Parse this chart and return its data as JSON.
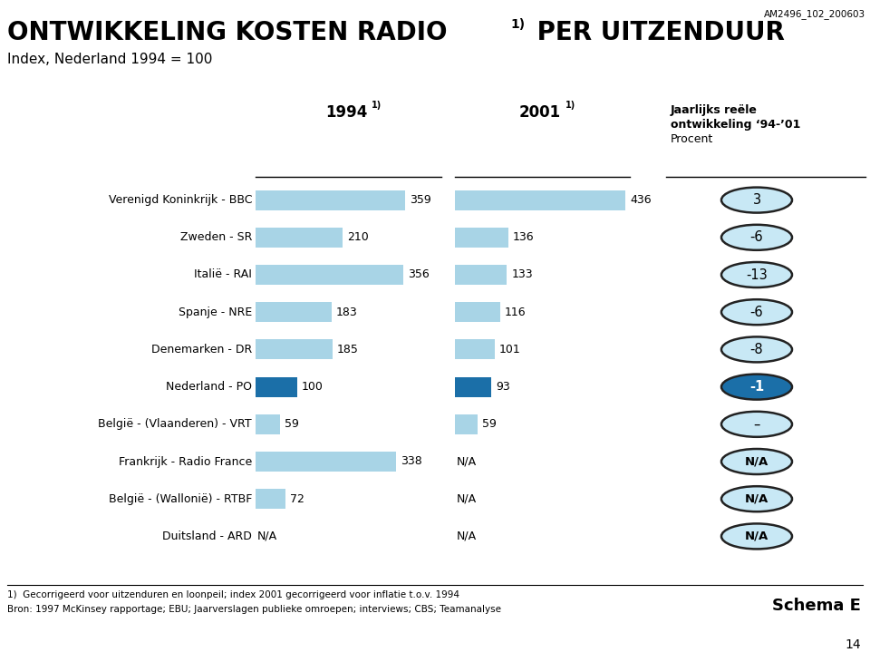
{
  "title_main": "ONTWIKKELING KOSTEN RADIO",
  "title_super": "1)",
  "title_main2": " PER UITZENDUUR",
  "subtitle": "Index, Nederland 1994 = 100",
  "col1_header": "1994",
  "col1_super": "1)",
  "col2_header": "2001",
  "col2_super": "1)",
  "col3_line1": "Jaarlijks reële",
  "col3_line2": "ontwikkeling ‘94-’01",
  "col3_line3": "Procent",
  "rows": [
    {
      "label": "Verenigd Koninkrijk - BBC",
      "val1994": 359,
      "val2001": 436,
      "pct": "3",
      "dark": false,
      "na1994": false,
      "na2001": false,
      "na_pct": false
    },
    {
      "label": "Zweden - SR",
      "val1994": 210,
      "val2001": 136,
      "pct": "-6",
      "dark": false,
      "na1994": false,
      "na2001": false,
      "na_pct": false
    },
    {
      "label": "Italië - RAI",
      "val1994": 356,
      "val2001": 133,
      "pct": "-13",
      "dark": false,
      "na1994": false,
      "na2001": false,
      "na_pct": false
    },
    {
      "label": "Spanje - NRE",
      "val1994": 183,
      "val2001": 116,
      "pct": "-6",
      "dark": false,
      "na1994": false,
      "na2001": false,
      "na_pct": false
    },
    {
      "label": "Denemarken - DR",
      "val1994": 185,
      "val2001": 101,
      "pct": "-8",
      "dark": false,
      "na1994": false,
      "na2001": false,
      "na_pct": false
    },
    {
      "label": "Nederland - PO",
      "val1994": 100,
      "val2001": 93,
      "pct": "-1",
      "dark": true,
      "na1994": false,
      "na2001": false,
      "na_pct": false
    },
    {
      "label": "België - (Vlaanderen) - VRT",
      "val1994": 59,
      "val2001": 59,
      "pct": "–",
      "dark": false,
      "na1994": false,
      "na2001": false,
      "na_pct": false
    },
    {
      "label": "Frankrijk - Radio France",
      "val1994": 338,
      "val2001": null,
      "pct": "N/A",
      "dark": false,
      "na1994": false,
      "na2001": true,
      "na_pct": true
    },
    {
      "label": "België - (Wallonië) - RTBF",
      "val1994": 72,
      "val2001": null,
      "pct": "N/A",
      "dark": false,
      "na1994": false,
      "na2001": true,
      "na_pct": true
    },
    {
      "label": "Duitsland - ARD",
      "val1994": null,
      "val2001": null,
      "pct": "N/A",
      "dark": false,
      "na1994": true,
      "na2001": true,
      "na_pct": true
    }
  ],
  "bar_light_color": "#A8D4E6",
  "bar_dark_color": "#1B6FA8",
  "ellipse_light_fill": "#C8E8F5",
  "ellipse_dark_fill": "#1B6FA8",
  "ellipse_light_text": "#000000",
  "ellipse_dark_text": "#FFFFFF",
  "footnote1": "1)  Gecorrigeerd voor uitzenduren en loonpeil; index 2001 gecorrigeerd voor inflatie t.o.v. 1994",
  "footnote2": "Bron: 1997 McKinsey rapportage; EBU; Jaarverslagen publieke omroepen; interviews; CBS; Teamanalyse",
  "schema": "Schema E",
  "page": "14",
  "ref_code": "AM2496_102_200603",
  "max_bar": 436
}
